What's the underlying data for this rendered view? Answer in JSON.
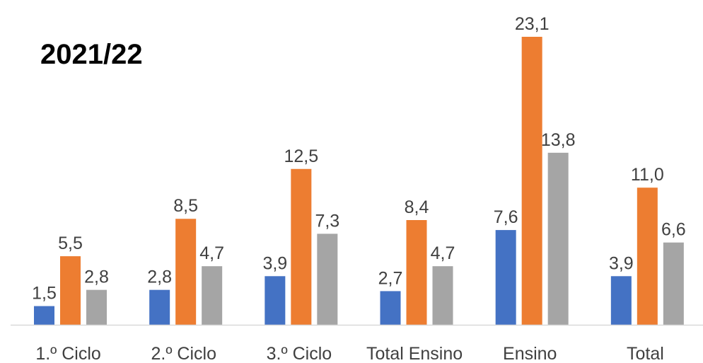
{
  "chart_data": {
    "type": "bar",
    "title": "2021/22",
    "categories": [
      "1.º Ciclo",
      "2.º Ciclo",
      "3.º Ciclo",
      "Total Ensino",
      "Ensino",
      "Total"
    ],
    "series": [
      {
        "color": "#4472C4",
        "values": [
          1.5,
          2.8,
          3.9,
          2.7,
          7.6,
          3.9
        ],
        "labels": [
          "1,5",
          "2,8",
          "3,9",
          "2,7",
          "7,6",
          "3,9"
        ]
      },
      {
        "color": "#ED7D31",
        "values": [
          5.5,
          8.5,
          12.5,
          8.4,
          23.1,
          11.0
        ],
        "labels": [
          "5,5",
          "8,5",
          "12,5",
          "8,4",
          "23,1",
          "11,0"
        ]
      },
      {
        "color": "#A5A5A5",
        "values": [
          2.8,
          4.7,
          7.3,
          4.7,
          13.8,
          6.6
        ],
        "labels": [
          "2,8",
          "4,7",
          "7,3",
          "4,7",
          "13,8",
          "6,6"
        ]
      }
    ],
    "ylim": [
      0,
      23.1
    ],
    "grid": false,
    "data_labels": true,
    "axis_color": "#D9D9D9"
  }
}
